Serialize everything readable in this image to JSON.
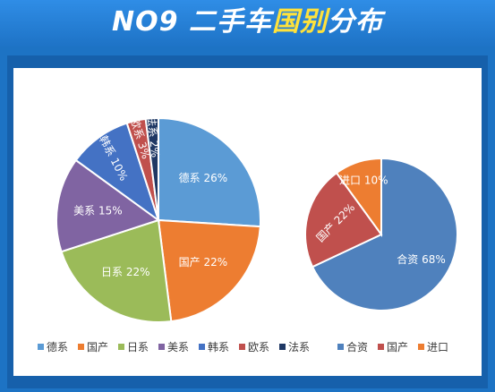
{
  "title": {
    "prefix": "NO9 二手车",
    "highlight": "国别",
    "suffix": "分布"
  },
  "colors": {
    "banner": "#1e73c6",
    "highlight": "#ffe23b",
    "panel": "#1660ab"
  },
  "chart_data": [
    {
      "type": "pie",
      "title": "",
      "slices": [
        {
          "label": "德系",
          "value": 26,
          "color": "#5b9bd5"
        },
        {
          "label": "国产",
          "value": 22,
          "color": "#ed7d31"
        },
        {
          "label": "日系",
          "value": 22,
          "color": "#9bbb59"
        },
        {
          "label": "美系",
          "value": 15,
          "color": "#8064a2"
        },
        {
          "label": "韩系",
          "value": 10,
          "color": "#4472c4"
        },
        {
          "label": "欧系",
          "value": 3,
          "color": "#c0504d"
        },
        {
          "label": "法系",
          "value": 2,
          "color": "#1f3864"
        }
      ],
      "legend_position": "bottom"
    },
    {
      "type": "pie",
      "title": "",
      "slices": [
        {
          "label": "合资",
          "value": 68,
          "color": "#4f81bd"
        },
        {
          "label": "国产",
          "value": 22,
          "color": "#c0504d"
        },
        {
          "label": "进口",
          "value": 10,
          "color": "#ed7d31"
        }
      ],
      "legend_position": "bottom"
    }
  ]
}
